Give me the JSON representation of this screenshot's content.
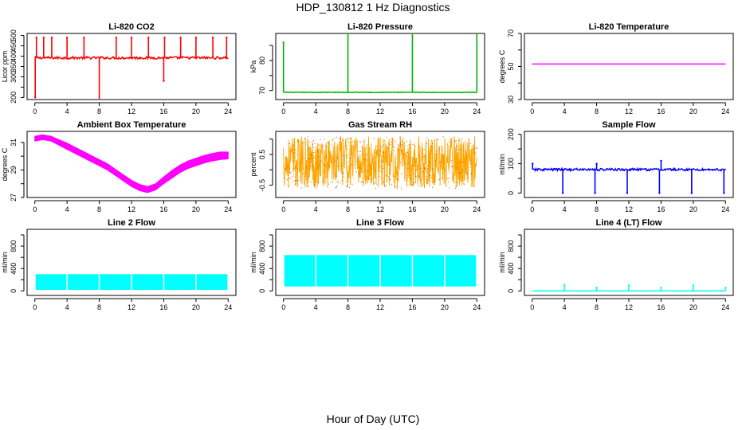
{
  "page": {
    "title": "HDP_130812  1 Hz Diagnostics",
    "xlabel": "Hour of Day (UTC)"
  },
  "chart_data": [
    {
      "title": "Li-820 CO2",
      "type": "line",
      "color": "#ff0000",
      "ylabel": "Licor ppm",
      "xlim": [
        0,
        24
      ],
      "xticks": [
        0,
        4,
        8,
        12,
        16,
        20,
        24
      ],
      "ylim": [
        190,
        510
      ],
      "yticks": [
        200,
        250,
        300,
        350,
        400,
        450,
        500
      ],
      "yticklabels": [
        "200",
        "",
        "300",
        "350",
        "400",
        "450",
        "500"
      ],
      "baseline": 392,
      "noise": 6,
      "spikes": [
        {
          "x": 0.05,
          "y": 200
        },
        {
          "x": 0.2,
          "y": 490
        },
        {
          "x": 1.1,
          "y": 490
        },
        {
          "x": 2.1,
          "y": 490
        },
        {
          "x": 4.0,
          "y": 490
        },
        {
          "x": 6.1,
          "y": 490
        },
        {
          "x": 8.0,
          "y": 190
        },
        {
          "x": 10.1,
          "y": 490
        },
        {
          "x": 12.0,
          "y": 490
        },
        {
          "x": 14.1,
          "y": 490
        },
        {
          "x": 16.0,
          "y": 280
        },
        {
          "x": 16.1,
          "y": 490
        },
        {
          "x": 18.1,
          "y": 490
        },
        {
          "x": 20.0,
          "y": 490
        },
        {
          "x": 22.1,
          "y": 490
        },
        {
          "x": 23.8,
          "y": 490
        }
      ]
    },
    {
      "title": "Li-820 Pressure",
      "type": "line",
      "color": "#00b400",
      "ylabel": "kPa",
      "xlim": [
        0,
        24
      ],
      "xticks": [
        0,
        4,
        8,
        12,
        16,
        20,
        24
      ],
      "ylim": [
        67,
        89
      ],
      "yticks": [
        70,
        75,
        80,
        85
      ],
      "yticklabels": [
        "70",
        "",
        "80",
        ""
      ],
      "baseline": 69.4,
      "noise": 0.1,
      "spikes": [
        {
          "x": 0.0,
          "y": 86
        },
        {
          "x": 8.0,
          "y": 89
        },
        {
          "x": 16.0,
          "y": 89
        },
        {
          "x": 24.0,
          "y": 89
        }
      ]
    },
    {
      "title": "Li-820 Temperature",
      "type": "line",
      "color": "#ff00ff",
      "ylabel": "degrees C",
      "xlim": [
        0,
        24
      ],
      "xticks": [
        0,
        4,
        8,
        12,
        16,
        20,
        24
      ],
      "ylim": [
        30,
        70
      ],
      "yticks": [
        30,
        40,
        50,
        60,
        70
      ],
      "yticklabels": [
        "30",
        "",
        "50",
        "",
        "70"
      ],
      "baseline": 51.5,
      "noise": 0
    },
    {
      "title": "Ambient Box Temperature",
      "type": "band",
      "color": "#ff00ff",
      "ylabel": "degrees C",
      "xlim": [
        0,
        24
      ],
      "xticks": [
        0,
        4,
        8,
        12,
        16,
        20,
        24
      ],
      "ylim": [
        27,
        31.8
      ],
      "yticks": [
        27,
        28,
        29,
        30,
        31
      ],
      "yticklabels": [
        "27",
        "",
        "29",
        "",
        "31"
      ],
      "x": [
        0,
        1,
        2,
        3,
        4,
        5,
        6,
        7,
        8,
        9,
        10,
        11,
        12,
        13,
        14,
        15,
        16,
        17,
        18,
        19,
        20,
        21,
        22,
        23,
        24
      ],
      "low": [
        31.1,
        31.2,
        31.1,
        30.8,
        30.5,
        30.2,
        29.9,
        29.6,
        29.3,
        29.0,
        28.6,
        28.2,
        27.8,
        27.5,
        27.35,
        27.55,
        28.0,
        28.4,
        28.8,
        29.1,
        29.3,
        29.5,
        29.65,
        29.75,
        29.8
      ],
      "high": [
        31.45,
        31.55,
        31.45,
        31.2,
        30.95,
        30.65,
        30.35,
        30.05,
        29.75,
        29.45,
        29.05,
        28.65,
        28.25,
        27.95,
        27.8,
        28.0,
        28.5,
        28.95,
        29.35,
        29.65,
        29.85,
        30.05,
        30.2,
        30.3,
        30.3
      ]
    },
    {
      "title": "Gas Stream RH",
      "type": "noise",
      "color": "#ffa500",
      "dot_color": "#b06000",
      "ylabel": "percent",
      "xlim": [
        0,
        24
      ],
      "xticks": [
        0,
        4,
        8,
        12,
        16,
        20,
        24
      ],
      "ylim": [
        -0.9,
        1.25
      ],
      "yticks": [
        -0.5,
        0,
        0.5,
        1
      ],
      "yticklabels": [
        "-0.5",
        "",
        "0.5",
        ""
      ],
      "low": -0.6,
      "high": 1.1
    },
    {
      "title": "Sample Flow",
      "type": "line",
      "color": "#0000ff",
      "ylabel": "ml/min",
      "xlim": [
        0,
        24
      ],
      "xticks": [
        0,
        4,
        8,
        12,
        16,
        20,
        24
      ],
      "ylim": [
        -15,
        210
      ],
      "yticks": [
        0,
        50,
        100,
        150,
        200
      ],
      "yticklabels": [
        "0",
        "",
        "100",
        "",
        "200"
      ],
      "baseline": 80,
      "noise": 4,
      "spikes": [
        {
          "x": 0.05,
          "y": 100
        },
        {
          "x": 3.8,
          "y": 0
        },
        {
          "x": 7.8,
          "y": 0
        },
        {
          "x": 8.0,
          "y": 100
        },
        {
          "x": 11.8,
          "y": 0
        },
        {
          "x": 15.8,
          "y": 0
        },
        {
          "x": 16.0,
          "y": 110
        },
        {
          "x": 19.8,
          "y": 0
        },
        {
          "x": 23.8,
          "y": 0
        }
      ]
    },
    {
      "title": "Line 2 Flow",
      "type": "block",
      "color": "#00ffff",
      "ylabel": "ml/min",
      "xlim": [
        0,
        24
      ],
      "xticks": [
        0,
        4,
        8,
        12,
        16,
        20,
        24
      ],
      "ylim": [
        -80,
        1100
      ],
      "yticks": [
        0,
        200,
        400,
        600,
        800,
        1000
      ],
      "yticklabels": [
        "0",
        "",
        "400",
        "",
        "800",
        ""
      ],
      "low": 20,
      "high": 300,
      "gaps": [
        4,
        8,
        12,
        16,
        20
      ]
    },
    {
      "title": "Line 3 Flow",
      "type": "block",
      "color": "#00ffff",
      "ylabel": "ml/min",
      "xlim": [
        0,
        24
      ],
      "xticks": [
        0,
        4,
        8,
        12,
        16,
        20,
        24
      ],
      "ylim": [
        -80,
        1100
      ],
      "yticks": [
        0,
        200,
        400,
        600,
        800,
        1000
      ],
      "yticklabels": [
        "0",
        "",
        "400",
        "",
        "800",
        ""
      ],
      "low": 80,
      "high": 640,
      "gaps": [
        4,
        8,
        12,
        16,
        20
      ]
    },
    {
      "title": "Line 4 (LT) Flow",
      "type": "line",
      "color": "#00ffff",
      "ylabel": "ml/min",
      "xlim": [
        0,
        24
      ],
      "xticks": [
        0,
        4,
        8,
        12,
        16,
        20,
        24
      ],
      "ylim": [
        -80,
        1100
      ],
      "yticks": [
        0,
        200,
        400,
        600,
        800,
        1000
      ],
      "yticklabels": [
        "0",
        "",
        "400",
        "",
        "800",
        ""
      ],
      "baseline": 0,
      "noise": 1,
      "spikes": [
        {
          "x": 4.0,
          "y": 110
        },
        {
          "x": 8.0,
          "y": 60
        },
        {
          "x": 12.0,
          "y": 100
        },
        {
          "x": 16.0,
          "y": 60
        },
        {
          "x": 20.0,
          "y": 100
        },
        {
          "x": 24.0,
          "y": 60
        }
      ]
    }
  ]
}
